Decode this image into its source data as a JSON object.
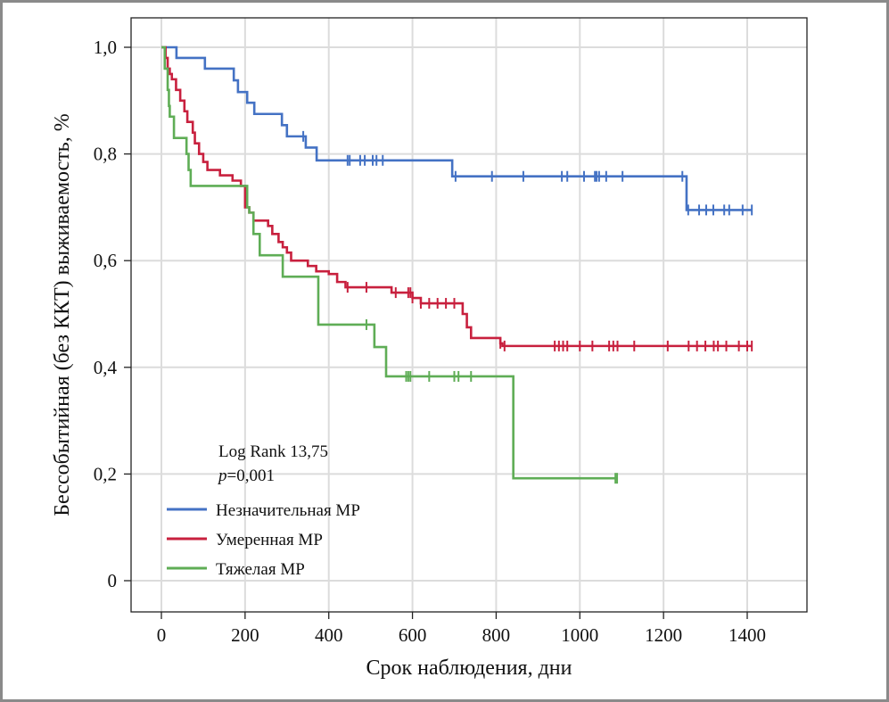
{
  "chart_data": {
    "type": "line",
    "subtype": "kaplan-meier",
    "xlabel": "Срок наблюдения, дни",
    "ylabel": "Бессобытийная (без ККТ) выживаемость, %",
    "xlim": [
      -70,
      1540
    ],
    "ylim": [
      -0.06,
      1.05
    ],
    "xticks": [
      0,
      200,
      400,
      600,
      800,
      1000,
      1200,
      1400
    ],
    "xtick_labels": [
      "0",
      "200",
      "400",
      "600",
      "800",
      "1000",
      "1200",
      "1400"
    ],
    "yticks": [
      0,
      0.2,
      0.4,
      0.6,
      0.8,
      1.0
    ],
    "ytick_labels": [
      "0",
      "0,2",
      "0,4",
      "0,6",
      "0,8",
      "1,0"
    ],
    "grid": true,
    "legend_position": "bottom-left",
    "annotation": {
      "line1": "Log Rank 13,75",
      "p_label": "p",
      "p_value": "=0,001"
    },
    "series": [
      {
        "name": "Незначительная МР",
        "color": "#4472c4",
        "steps": [
          [
            0,
            1.0
          ],
          [
            36,
            0.98
          ],
          [
            104,
            0.96
          ],
          [
            173,
            0.938
          ],
          [
            183,
            0.916
          ],
          [
            205,
            0.896
          ],
          [
            222,
            0.875
          ],
          [
            288,
            0.854
          ],
          [
            300,
            0.833
          ],
          [
            345,
            0.812
          ],
          [
            371,
            0.788
          ],
          [
            695,
            0.758
          ],
          [
            1255,
            0.695
          ]
        ],
        "end": 1411,
        "censored": [
          339,
          445,
          450,
          475,
          486,
          505,
          514,
          529,
          703,
          790,
          865,
          957,
          970,
          1010,
          1036,
          1040,
          1046,
          1063,
          1102,
          1245,
          1259,
          1285,
          1302,
          1319,
          1345,
          1357,
          1389,
          1411
        ]
      },
      {
        "name": "Умеренная МР",
        "color": "#c8203e",
        "steps": [
          [
            0,
            1.0
          ],
          [
            10,
            0.98
          ],
          [
            15,
            0.96
          ],
          [
            20,
            0.95
          ],
          [
            25,
            0.94
          ],
          [
            35,
            0.92
          ],
          [
            45,
            0.9
          ],
          [
            55,
            0.88
          ],
          [
            62,
            0.86
          ],
          [
            75,
            0.84
          ],
          [
            80,
            0.82
          ],
          [
            90,
            0.8
          ],
          [
            100,
            0.785
          ],
          [
            110,
            0.77
          ],
          [
            140,
            0.76
          ],
          [
            170,
            0.75
          ],
          [
            190,
            0.74
          ],
          [
            200,
            0.7
          ],
          [
            210,
            0.69
          ],
          [
            220,
            0.675
          ],
          [
            255,
            0.665
          ],
          [
            265,
            0.65
          ],
          [
            280,
            0.635
          ],
          [
            290,
            0.625
          ],
          [
            300,
            0.615
          ],
          [
            310,
            0.6
          ],
          [
            350,
            0.59
          ],
          [
            370,
            0.58
          ],
          [
            400,
            0.575
          ],
          [
            420,
            0.56
          ],
          [
            440,
            0.55
          ],
          [
            550,
            0.54
          ],
          [
            600,
            0.53
          ],
          [
            620,
            0.52
          ],
          [
            720,
            0.5
          ],
          [
            730,
            0.475
          ],
          [
            740,
            0.455
          ],
          [
            810,
            0.445
          ],
          [
            815,
            0.44
          ]
        ],
        "end": 1411,
        "censored": [
          445,
          490,
          560,
          590,
          595,
          600,
          620,
          640,
          660,
          680,
          700,
          810,
          820,
          940,
          950,
          960,
          970,
          1000,
          1030,
          1070,
          1080,
          1090,
          1130,
          1210,
          1260,
          1280,
          1300,
          1320,
          1330,
          1350,
          1380,
          1400,
          1411
        ]
      },
      {
        "name": "Тяжелая МР",
        "color": "#5fad56",
        "steps": [
          [
            0,
            1.0
          ],
          [
            8,
            0.96
          ],
          [
            15,
            0.92
          ],
          [
            18,
            0.89
          ],
          [
            20,
            0.87
          ],
          [
            30,
            0.83
          ],
          [
            60,
            0.8
          ],
          [
            65,
            0.77
          ],
          [
            70,
            0.74
          ],
          [
            205,
            0.7
          ],
          [
            210,
            0.69
          ],
          [
            220,
            0.65
          ],
          [
            235,
            0.61
          ],
          [
            290,
            0.57
          ],
          [
            375,
            0.48
          ],
          [
            509,
            0.438
          ],
          [
            537,
            0.383
          ],
          [
            841,
            0.192
          ]
        ],
        "end": 1089,
        "censored": [
          490,
          585,
          590,
          595,
          640,
          700,
          710,
          740,
          1085,
          1089
        ]
      }
    ]
  }
}
